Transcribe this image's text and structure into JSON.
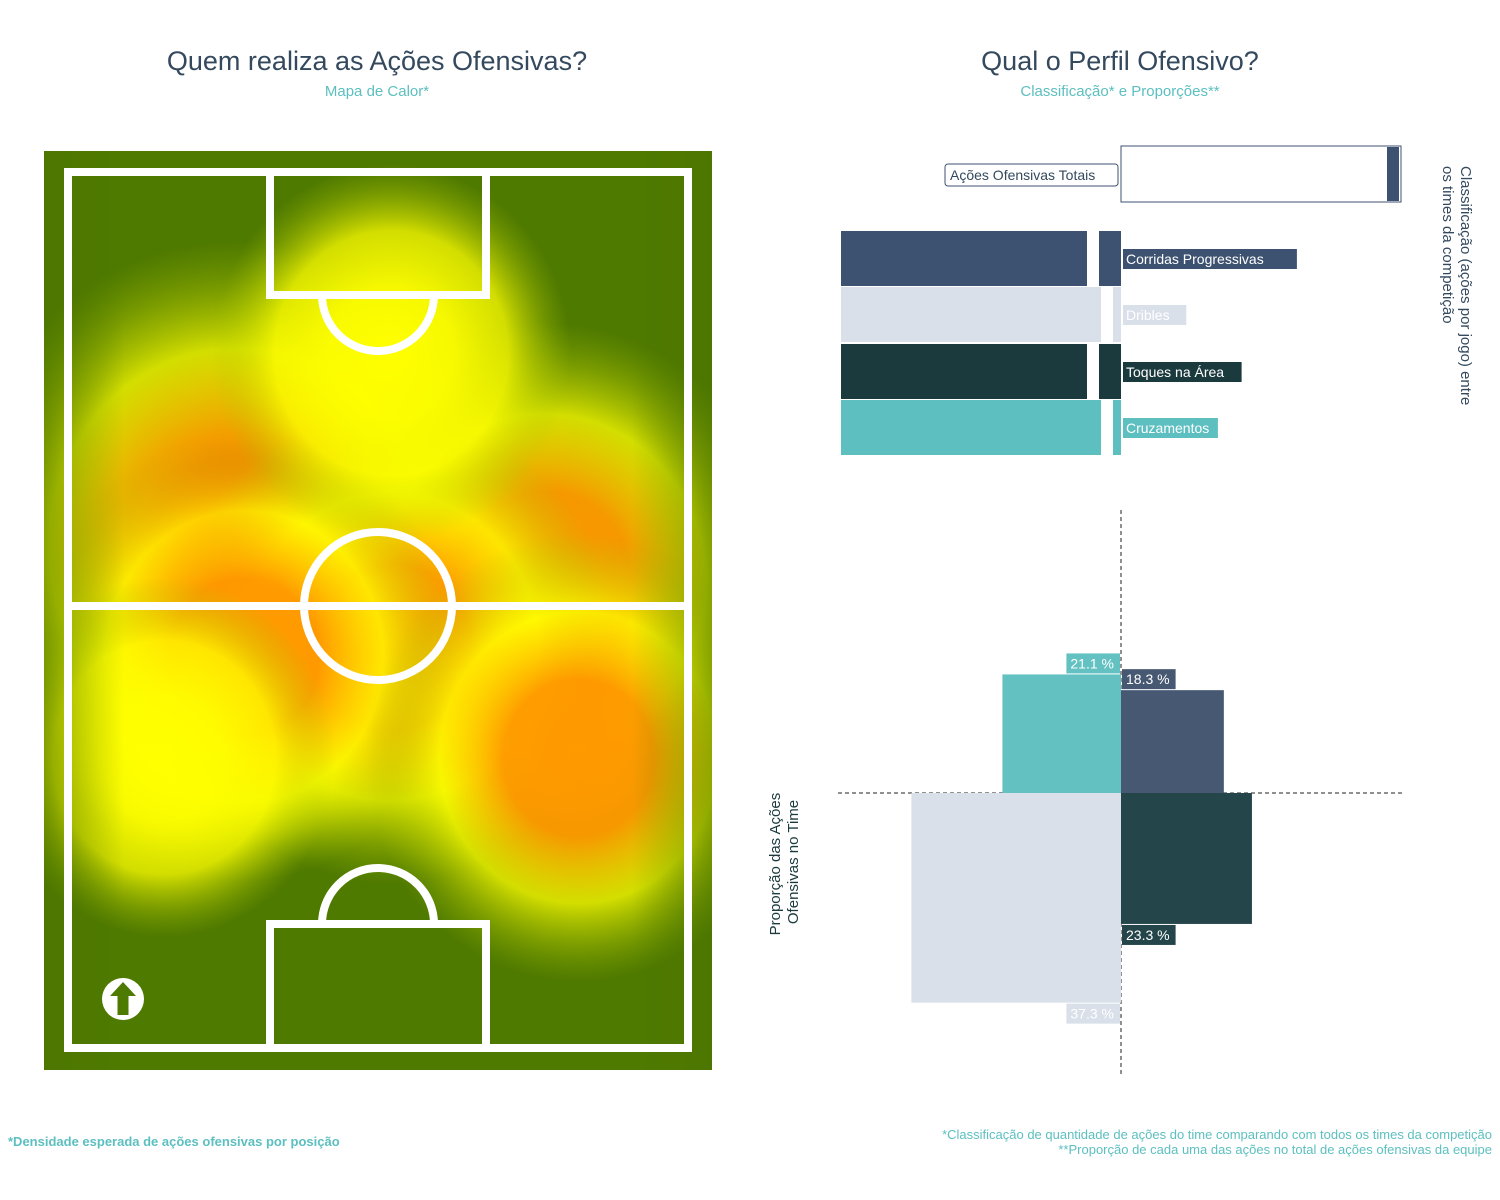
{
  "left_panel": {
    "title": "Quem realiza as Ações Ofensivas?",
    "subtitle": "Mapa de Calor*"
  },
  "right_panel": {
    "title": "Qual o Perfil Ofensivo?",
    "subtitle": "Classificação* e Proporções**"
  },
  "footnotes": {
    "left": "*Densidade esperada de ações ofensivas por posição",
    "right_line1": "*Classificação de quantidade de ações do time comparando com todos os times da competição",
    "right_line2": "**Proporção de cada uma das ações no total de ações ofensivas da equipe"
  },
  "colors": {
    "navy": "#3d5170",
    "light": "#d9e0ea",
    "dark_teal": "#1b3a3e",
    "teal": "#5dbfc0",
    "title": "#34495e",
    "pitch_green": "#4f7a00"
  },
  "icons": {
    "direction": "up-arrow-icon"
  },
  "chart_data": [
    {
      "type": "heatmap",
      "title": "Quem realiza as Ações Ofensivas?",
      "subtitle": "Mapa de Calor*",
      "attack_direction": "up",
      "colormap": [
        "#4f7a00",
        "#a8c400",
        "#ffff00",
        "#ff9900",
        "#ff0000"
      ],
      "hotspots": [
        {
          "x": 0.29,
          "y": 0.43,
          "intensity": 1.0
        },
        {
          "x": 0.75,
          "y": 0.47,
          "intensity": 0.75
        },
        {
          "x": 0.52,
          "y": 0.54,
          "intensity": 0.62
        },
        {
          "x": 0.3,
          "y": 0.55,
          "intensity": 0.55
        },
        {
          "x": 0.8,
          "y": 0.66,
          "intensity": 0.55
        },
        {
          "x": 0.52,
          "y": 0.22,
          "intensity": 0.35
        },
        {
          "x": 0.18,
          "y": 0.66,
          "intensity": 0.3
        }
      ]
    },
    {
      "type": "bar",
      "orientation": "horizontal",
      "title": "Qual o Perfil Ofensivo?",
      "subtitle": "Classificação* e Proporções**",
      "ylabel": "Classificação (ações por jogo) entre os times da competição",
      "xlim": [
        0,
        1
      ],
      "categories": [
        "Ações Ofensivas Totais",
        "Corridas Progressivas",
        "Dribles",
        "Toques na Área",
        "Cruzamentos"
      ],
      "values": [
        0.95,
        0.9,
        0.95,
        0.9,
        0.95
      ],
      "colors": [
        "#3d5170",
        "#3d5170",
        "#d9e0ea",
        "#1b3a3e",
        "#5dbfc0"
      ]
    },
    {
      "type": "bar",
      "subtype": "quadrant",
      "ylabel": "Proporção das Ações Ofensivas no Time",
      "series": [
        {
          "name": "Cruzamentos",
          "value": 21.1,
          "label": "21.1 %",
          "quadrant": "top-left",
          "color": "#63c1c2"
        },
        {
          "name": "Corridas Progressivas",
          "value": 18.3,
          "label": "18.3 %",
          "quadrant": "top-right",
          "color": "#475873"
        },
        {
          "name": "Dribles",
          "value": 37.3,
          "label": "37.3 %",
          "quadrant": "bottom-left",
          "color": "#d9e0ea"
        },
        {
          "name": "Toques na Área",
          "value": 23.3,
          "label": "23.3 %",
          "quadrant": "bottom-right",
          "color": "#24464a"
        }
      ]
    }
  ]
}
